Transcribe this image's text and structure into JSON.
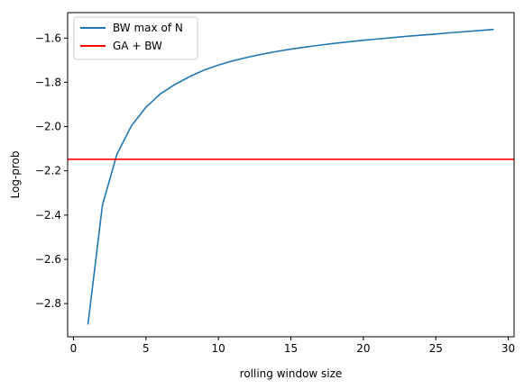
{
  "chart_data": {
    "type": "line",
    "xlabel": "rolling window size",
    "ylabel": "Log-prob",
    "xlim": [
      -0.4,
      30.4
    ],
    "ylim": [
      -2.95,
      -1.485
    ],
    "x_ticks": [
      0,
      5,
      10,
      15,
      20,
      25,
      30
    ],
    "y_ticks": [
      -2.8,
      -2.6,
      -2.4,
      -2.2,
      -2.0,
      -1.8,
      -1.6
    ],
    "y_tick_labels": [
      "−2.8",
      "−2.6",
      "−2.4",
      "−2.2",
      "−2.0",
      "−1.8",
      "−1.6"
    ],
    "grid": false,
    "legend_position": "upper-left",
    "series": [
      {
        "name": "BW max of N",
        "kind": "line",
        "color": "#1f77b4",
        "x": [
          1,
          2,
          3,
          4,
          5,
          6,
          7,
          8,
          9,
          10,
          11,
          12,
          13,
          14,
          15,
          16,
          17,
          18,
          19,
          20,
          21,
          22,
          23,
          24,
          25,
          26,
          27,
          28,
          29
        ],
        "y": [
          -2.895,
          -2.355,
          -2.125,
          -1.997,
          -1.913,
          -1.852,
          -1.81,
          -1.775,
          -1.745,
          -1.722,
          -1.703,
          -1.687,
          -1.673,
          -1.661,
          -1.65,
          -1.641,
          -1.632,
          -1.624,
          -1.617,
          -1.61,
          -1.604,
          -1.598,
          -1.592,
          -1.587,
          -1.582,
          -1.576,
          -1.571,
          -1.566,
          -1.561
        ]
      },
      {
        "name": "GA + BW",
        "kind": "hline",
        "color": "#ff0000",
        "y": -2.148
      }
    ]
  }
}
